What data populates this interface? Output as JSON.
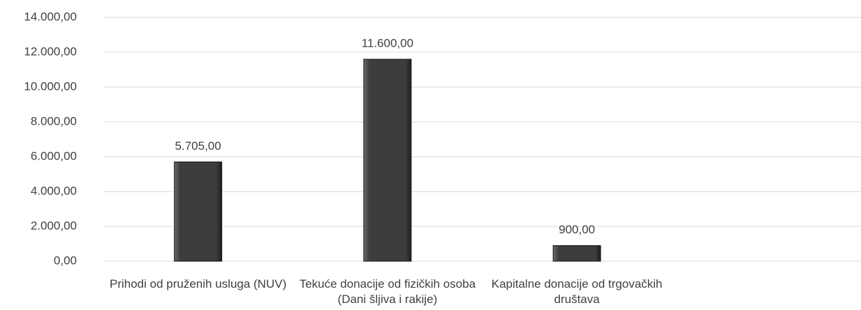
{
  "chart_data": {
    "type": "bar",
    "categories": [
      "Prihodi od pruženih usluga (NUV)",
      "Tekuće donacije od fizičkih osoba (Dani šljiva i rakije)",
      "Kapitalne donacije od trgovačkih društava",
      null
    ],
    "values": [
      5705,
      11600,
      900,
      null
    ],
    "value_labels": [
      "5.705,00",
      "11.600,00",
      "900,00",
      null
    ],
    "color": "#3d3d3d",
    "ylim": [
      0,
      14000
    ],
    "yticks": [
      {
        "value": 0,
        "label": "0,00"
      },
      {
        "value": 2000,
        "label": "2.000,00"
      },
      {
        "value": 4000,
        "label": "4.000,00"
      },
      {
        "value": 6000,
        "label": "6.000,00"
      },
      {
        "value": 8000,
        "label": "8.000,00"
      },
      {
        "value": 10000,
        "label": "10.000,00"
      },
      {
        "value": 12000,
        "label": "12.000,00"
      },
      {
        "value": 14000,
        "label": "14.000,00"
      }
    ],
    "grid": true
  }
}
